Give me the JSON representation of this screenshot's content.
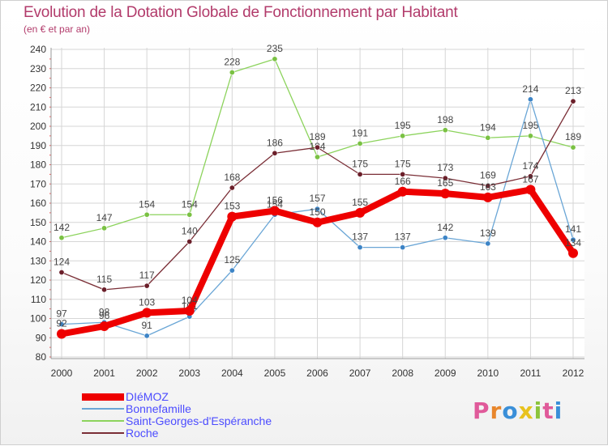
{
  "title": "Evolution de la Dotation Globale de Fonctionnement par Habitant",
  "subtitle": "(en € et par an)",
  "logo": {
    "text": "Proxiti",
    "colors": [
      "#e05a9a",
      "#e8862c",
      "#3a8fd8",
      "#e8c21e",
      "#8cc43c",
      "#e05a9a",
      "#3a8fd8"
    ]
  },
  "chart_data": {
    "type": "line",
    "title": "Evolution de la Dotation Globale de Fonctionnement par Habitant",
    "subtitle": "(en € et par an)",
    "xlabel": "",
    "ylabel": "",
    "ylim": [
      80,
      240
    ],
    "yticks": [
      80,
      90,
      100,
      110,
      120,
      130,
      140,
      150,
      160,
      170,
      180,
      190,
      200,
      210,
      220,
      230,
      240
    ],
    "grid": true,
    "legend_position": "bottom-left",
    "categories": [
      "2000",
      "2001",
      "2002",
      "2003",
      "2004",
      "2005",
      "2006",
      "2007",
      "2008",
      "2009",
      "2010",
      "2011",
      "2012"
    ],
    "series": [
      {
        "name": "Saint-Georges-d'Espéranche",
        "color": "#8cd35c",
        "marker": "#7ac143",
        "width": 1.3,
        "values": [
          142,
          147,
          154,
          154,
          228,
          235,
          184,
          191,
          195,
          198,
          194,
          195,
          189
        ],
        "labels": [
          "142",
          "147",
          "154",
          "154",
          "228",
          "235",
          "184",
          "191",
          "195",
          "198",
          "194",
          "195",
          "189"
        ]
      },
      {
        "name": "Bonnefamille",
        "color": "#6aa6d6",
        "marker": "#3d84c6",
        "width": 1.3,
        "values": [
          97,
          98,
          91,
          101,
          125,
          154,
          157,
          137,
          137,
          142,
          139,
          214,
          141
        ],
        "labels": [
          "97",
          "98",
          "91",
          "101",
          "125",
          "154",
          "157",
          "137",
          "137",
          "142",
          "139",
          "214",
          "141"
        ]
      },
      {
        "name": "Roche",
        "color": "#7a2e36",
        "marker": "#6b1f2a",
        "width": 1.3,
        "values": [
          124,
          115,
          117,
          140,
          168,
          186,
          189,
          175,
          175,
          173,
          169,
          174,
          213
        ],
        "labels": [
          "124",
          "115",
          "117",
          "140",
          "168",
          "186",
          "189",
          "175",
          "175",
          "173",
          "169",
          "174",
          "213"
        ]
      },
      {
        "name": "DIéMOZ",
        "color": "#ee0000",
        "marker": "#ee0000",
        "width": 8,
        "values": [
          92,
          96,
          103,
          104,
          153,
          156,
          150,
          155,
          166,
          165,
          163,
          167,
          134
        ],
        "labels": [
          "92",
          "96",
          "103",
          "104",
          "153",
          "156",
          "150",
          "155",
          "166",
          "165",
          "163",
          "167",
          "134"
        ]
      }
    ],
    "legend": [
      {
        "name": "DIéMOZ",
        "color": "#ee0000",
        "thickness": 9
      },
      {
        "name": "Bonnefamille",
        "color": "#6aa6d6",
        "thickness": 2
      },
      {
        "name": "Saint-Georges-d'Espéranche",
        "color": "#8cd35c",
        "thickness": 2
      },
      {
        "name": "Roche",
        "color": "#7a2e36",
        "thickness": 2
      }
    ]
  }
}
